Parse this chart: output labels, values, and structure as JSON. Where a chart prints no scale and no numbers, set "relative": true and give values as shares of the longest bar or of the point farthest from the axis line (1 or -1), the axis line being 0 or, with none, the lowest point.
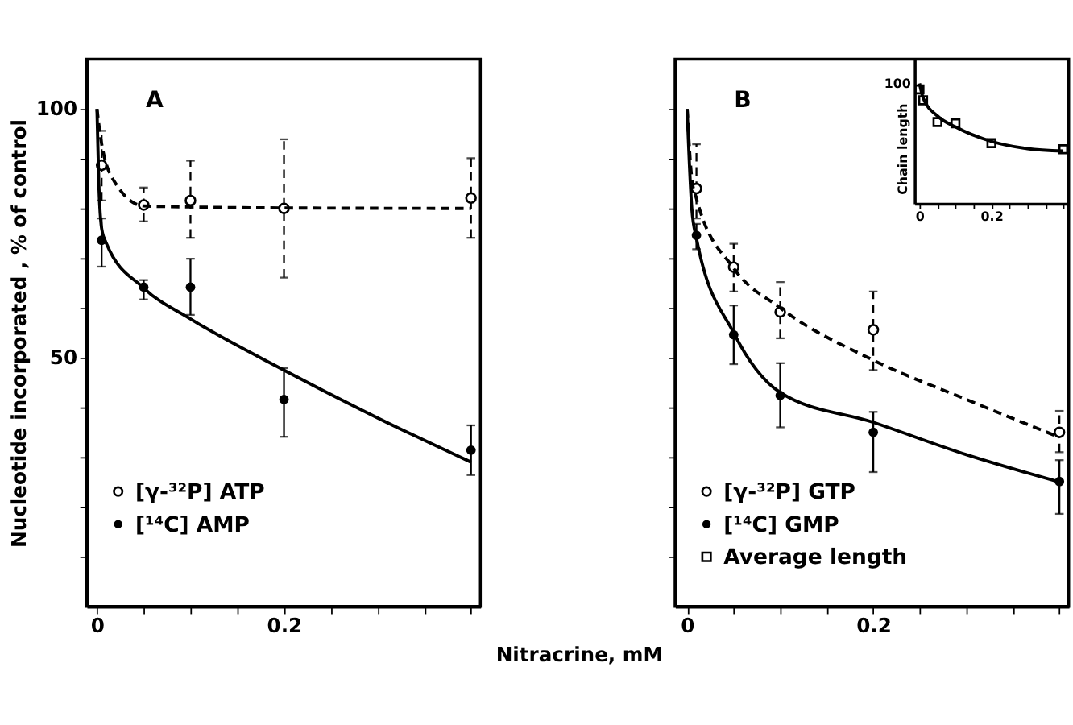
{
  "chart_data": [
    {
      "type": "scatter",
      "annotations": [
        "A"
      ],
      "xlabel": "Nitracrine, mM",
      "ylabel": "Nucleotide incorporated , % of control",
      "xlim": [
        -0.011,
        0.41
      ],
      "ylim": [
        0,
        110
      ],
      "xticks": [
        0,
        {
          "value": 0.05,
          "label": null
        },
        {
          "value": 0.1,
          "label": null
        },
        {
          "value": 0.15,
          "label": null
        },
        0.2,
        {
          "value": 0.25,
          "label": null
        },
        {
          "value": 0.3,
          "label": null
        },
        {
          "value": 0.35,
          "label": null
        },
        {
          "value": 0.4,
          "label": null
        }
      ],
      "yticks": [
        {
          "value": 10,
          "label": null
        },
        {
          "value": 20,
          "label": null
        },
        {
          "value": 30,
          "label": null
        },
        {
          "value": 40,
          "label": null
        },
        50,
        {
          "value": 60,
          "label": null
        },
        {
          "value": 70,
          "label": null
        },
        {
          "value": 80,
          "label": null
        },
        {
          "value": 90,
          "label": null
        },
        100
      ],
      "grid": false,
      "legend": "bottom left",
      "series": [
        {
          "name": "[γ-³²P] ATP",
          "marker": "circle",
          "line_style": "dashed",
          "color": "#000000",
          "x": [
            0.005,
            0.05,
            0.1,
            0.2,
            0.4
          ],
          "values": [
            88.7,
            80.7,
            81.6,
            80.0,
            82.1
          ],
          "errors": [
            [
              81.6,
              95.6
            ],
            [
              77.4,
              84.2
            ],
            [
              74.1,
              89.6
            ],
            [
              66.1,
              93.9
            ],
            [
              74.1,
              90.1
            ]
          ]
        },
        {
          "name": "[¹⁴C] AMP",
          "marker": "circle",
          "line_style": "solid",
          "color": "#000000",
          "x": [
            0.005,
            0.05,
            0.1,
            0.2,
            0.4
          ],
          "values": [
            73.6,
            64.2,
            64.2,
            41.6,
            31.4
          ],
          "errors": [
            [
              68.3,
              78.0
            ],
            [
              61.7,
              65.6
            ],
            [
              58.6,
              69.9
            ],
            [
              34.1,
              47.9
            ],
            [
              26.4,
              36.4
            ]
          ]
        },
        {
          "type": "line",
          "marker": "none",
          "line_style": "dashed",
          "color": "#000000",
          "x": [
            0,
            0.005,
            0.02,
            0.05,
            0.1,
            0.2,
            0.4
          ],
          "values": [
            100,
            93,
            85,
            80.5,
            80.3,
            80.1,
            80
          ]
        },
        {
          "type": "line",
          "marker": "none",
          "line_style": "solid",
          "color": "#000000",
          "x": [
            0,
            0.002,
            0.005,
            0.01,
            0.05,
            0.1,
            0.2,
            0.3,
            0.4
          ],
          "values": [
            100,
            85,
            76,
            73,
            64,
            57.8,
            47.5,
            37.9,
            29
          ]
        }
      ]
    },
    {
      "type": "scatter",
      "annotations": [
        "B"
      ],
      "xlim": [
        -0.013,
        0.41
      ],
      "ylim": [
        0,
        110
      ],
      "tick_labels": "x",
      "xticks": [
        0,
        {
          "value": 0.05,
          "label": null
        },
        {
          "value": 0.1,
          "label": null
        },
        {
          "value": 0.15,
          "label": null
        },
        0.2,
        {
          "value": 0.25,
          "label": null
        },
        {
          "value": 0.3,
          "label": null
        },
        {
          "value": 0.35,
          "label": null
        },
        {
          "value": 0.4,
          "label": null
        }
      ],
      "yticks": [
        {
          "value": 10,
          "label": null
        },
        {
          "value": 20,
          "label": null
        },
        {
          "value": 30,
          "label": null
        },
        {
          "value": 40,
          "label": null
        },
        {
          "value": 50,
          "label": null
        },
        {
          "value": 60,
          "label": null
        },
        {
          "value": 70,
          "label": null
        },
        {
          "value": 80,
          "label": null
        },
        {
          "value": 90,
          "label": null
        },
        {
          "value": 100,
          "label": null
        }
      ],
      "grid": false,
      "legend": "bottom left",
      "series": [
        {
          "name": "[γ-³²P] GTP",
          "marker": "circle",
          "line_style": "dashed",
          "color": "#000000",
          "x": [
            0.01,
            0.05,
            0.1,
            0.2,
            0.4
          ],
          "values": [
            84.0,
            68.2,
            59.2,
            55.6,
            35.0
          ],
          "errors": [
            [
              78,
              92.9
            ],
            [
              63.3,
              72.9
            ],
            [
              53.9,
              65.2
            ],
            [
              47.5,
              63.3
            ],
            [
              31,
              39.3
            ]
          ]
        },
        {
          "name": "[¹⁴C] GMP",
          "marker": "circle",
          "line_style": "solid",
          "color": "#000000",
          "x": [
            0.01,
            0.05,
            0.1,
            0.2,
            0.4
          ],
          "values": [
            74.6,
            54.6,
            42.4,
            35.0,
            25.1
          ],
          "errors": [
            [
              71.8,
              76.9
            ],
            [
              48.7,
              60.5
            ],
            [
              36.0,
              48.9
            ],
            [
              27.0,
              39.1
            ],
            [
              18.6,
              29.4
            ]
          ]
        },
        {
          "type": "line",
          "marker": "none",
          "line_style": "dashed",
          "color": "#000000",
          "x": [
            0,
            0.005,
            0.01,
            0.05,
            0.1,
            0.2,
            0.3,
            0.4
          ],
          "values": [
            100,
            86,
            82,
            68,
            60,
            49.5,
            41.6,
            34
          ]
        },
        {
          "type": "line",
          "marker": "none",
          "line_style": "solid",
          "color": "#000000",
          "x": [
            0,
            0.005,
            0.01,
            0.05,
            0.1,
            0.2,
            0.3,
            0.4
          ],
          "values": [
            100,
            80,
            74,
            55,
            43,
            37,
            30.5,
            25
          ]
        }
      ]
    },
    {
      "type": "scatter",
      "ylabel": "Chain length",
      "relative": true,
      "annotations": [
        "100"
      ],
      "xlim": [
        -0.012,
        0.415
      ],
      "xticks": [
        0,
        {
          "value": 0.05,
          "label": null
        },
        {
          "value": 0.1,
          "label": null
        },
        {
          "value": 0.15,
          "label": null
        },
        0.2,
        {
          "value": 0.25,
          "label": null
        },
        {
          "value": 0.3,
          "label": null
        },
        {
          "value": 0.35,
          "label": null
        },
        {
          "value": 0.4,
          "label": null
        }
      ],
      "grid": false,
      "legend": "bottom left",
      "series": [
        {
          "name": "Average length",
          "marker": "square",
          "line_style": "solid",
          "color": "#000000",
          "x": [
            0,
            0.01,
            0.05,
            0.1,
            0.2,
            0.4
          ],
          "values": [
            0.95,
            0.86,
            0.68,
            0.67,
            0.505,
            0.455
          ]
        },
        {
          "type": "line",
          "marker": "none",
          "line_style": "solid",
          "color": "#000000",
          "x": [
            0,
            0.01,
            0.05,
            0.1,
            0.2,
            0.3,
            0.4
          ],
          "values": [
            1,
            0.88,
            0.73,
            0.64,
            0.52,
            0.46,
            0.44
          ]
        }
      ]
    }
  ]
}
